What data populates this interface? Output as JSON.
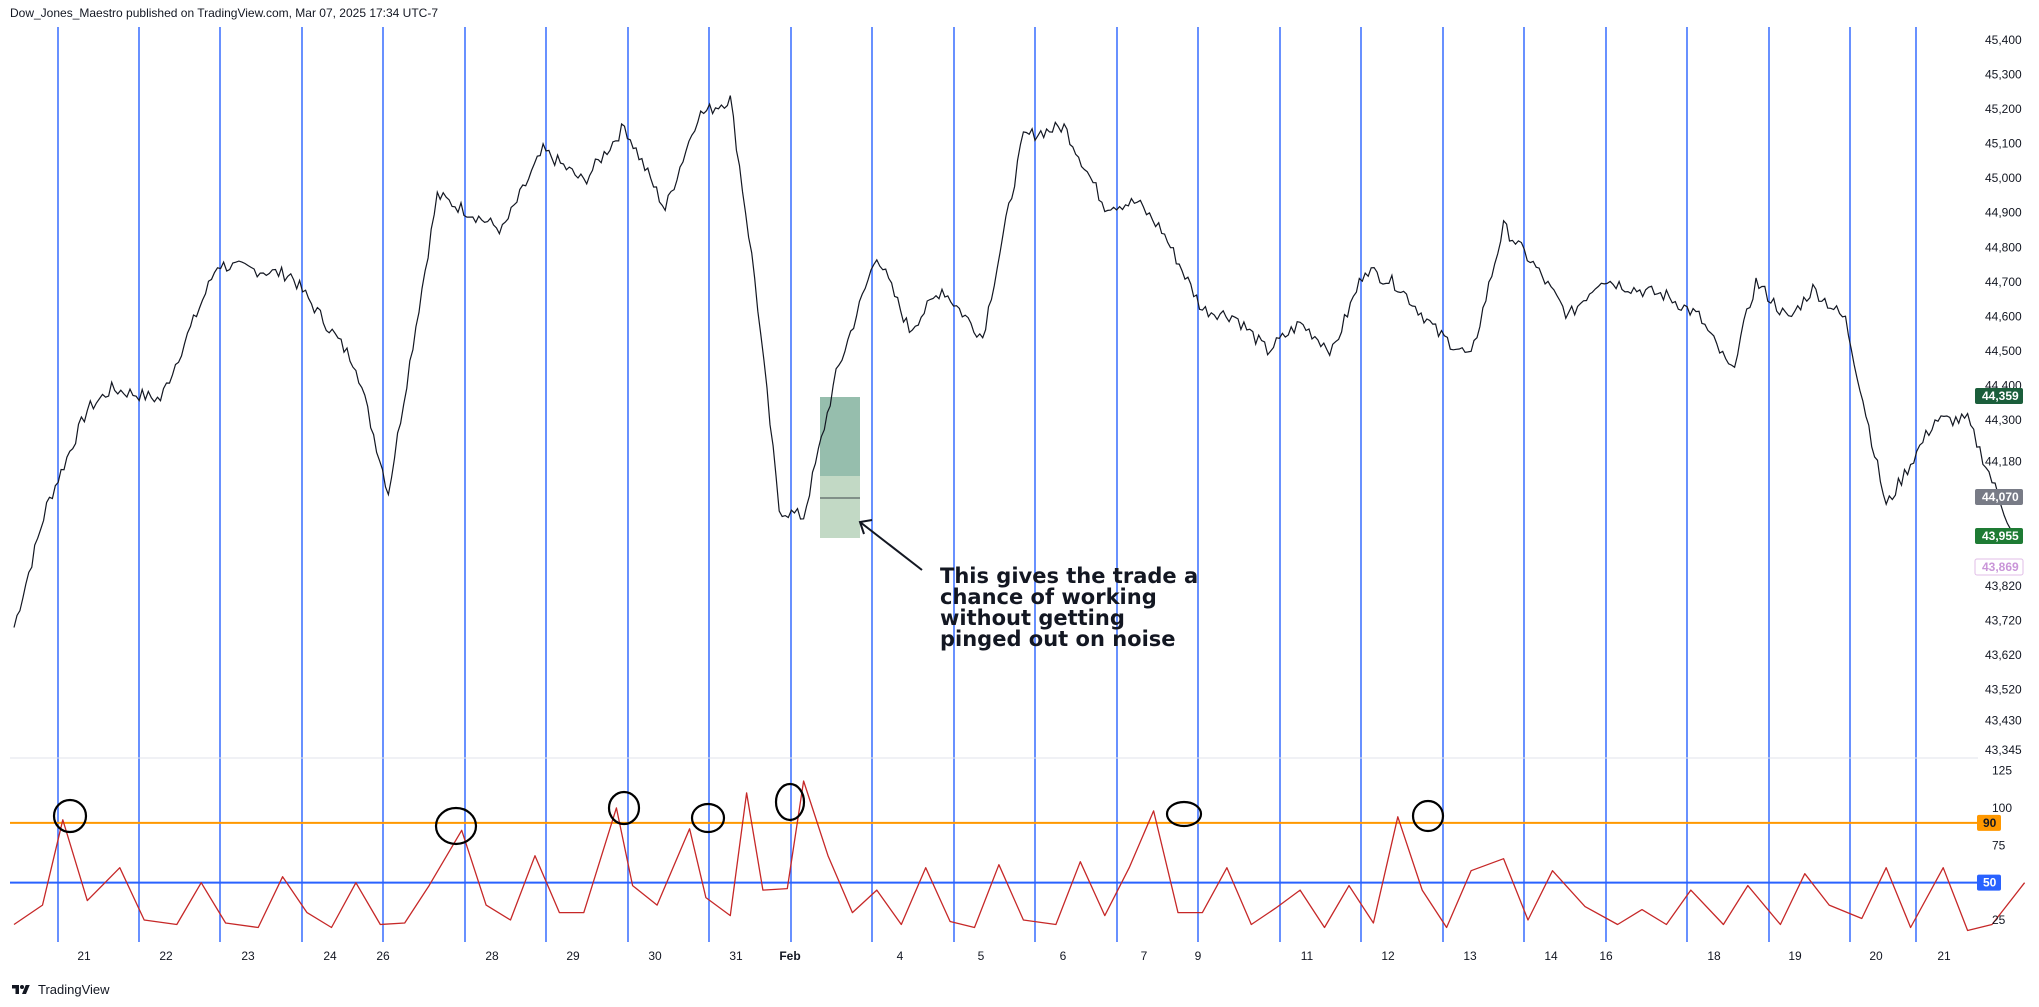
{
  "header": {
    "published_label": "Dow_Jones_Maestro published on TradingView.com, Mar 07, 2025 17:34 UTC-7"
  },
  "footer": {
    "brand": "TradingView",
    "logo_icon": "tradingview-logo-icon"
  },
  "annotation": {
    "lines": [
      "This gives the trade a",
      "chance of working",
      "without getting",
      "pinged out on noise"
    ],
    "arrow_icon": "arrow-pointer-icon"
  },
  "colors": {
    "price_line": "#131722",
    "vertical_lines": "#2962ff",
    "oscillator": "#c62828",
    "level_90": "#ff9800",
    "level_50": "#2962ff",
    "trade_box": "#2e7d5b",
    "badge_green": "#1b5e3b",
    "badge_grey": "#787b86",
    "badge_dark_green": "#1e7b34",
    "badge_pink": "#e1bee7"
  },
  "chart_data": [
    {
      "type": "line",
      "name": "price",
      "x_ticks": [
        "21",
        "22",
        "23",
        "24",
        "26",
        "28",
        "29",
        "30",
        "31",
        "Feb",
        "4",
        "5",
        "6",
        "7",
        "9",
        "11",
        "12",
        "13",
        "14",
        "16",
        "18",
        "19",
        "20",
        "21"
      ],
      "y_ticks": [
        "45,400",
        "45,300",
        "45,200",
        "45,100",
        "45,000",
        "44,900",
        "44,800",
        "44,700",
        "44,600",
        "44,500",
        "44,400",
        "44,300",
        "44,180",
        "43,820",
        "43,720",
        "43,620",
        "43,520",
        "43,430",
        "43,345"
      ],
      "ylim": [
        43345,
        45400
      ],
      "x": [
        0,
        0.4,
        0.9,
        1.2,
        1.8,
        2.5,
        3.4,
        4.2,
        4.6,
        5.2,
        6.0,
        6.5,
        7.0,
        7.5,
        8.0,
        8.4,
        8.8,
        9.1,
        9.4,
        9.7,
        10.1,
        10.6,
        11.0,
        11.4,
        11.9,
        12.4,
        12.9,
        13.4,
        13.8,
        14.1,
        14.6,
        15.0,
        15.4,
        15.8,
        16.2,
        16.6,
        17.0,
        17.5,
        17.9,
        18.3,
        18.7,
        19.1,
        19.5,
        19.9,
        20.3,
        20.7,
        21.1,
        21.4,
        21.8,
        22.1,
        22.5,
        23.0,
        23.6,
        24.0,
        24.6
      ],
      "y": [
        43700,
        44050,
        44330,
        44390,
        44360,
        44750,
        44720,
        44460,
        44090,
        44950,
        44850,
        45080,
        44990,
        45150,
        44910,
        45180,
        45230,
        44710,
        44040,
        44020,
        44430,
        44780,
        44560,
        44680,
        44540,
        45120,
        45150,
        44920,
        44930,
        44850,
        44620,
        44600,
        44500,
        44580,
        44500,
        44740,
        44690,
        44550,
        44480,
        44860,
        44740,
        44600,
        44710,
        44680,
        44660,
        44600,
        44440,
        44700,
        44590,
        44680,
        44590,
        44050,
        44300,
        44300,
        43950
      ]
    },
    {
      "type": "line",
      "name": "oscillator",
      "y_ticks": [
        "125",
        "100",
        "75",
        "50",
        "25"
      ],
      "ylim": [
        15,
        128
      ],
      "levels": [
        90,
        50
      ],
      "x": [
        0,
        0.35,
        0.6,
        0.9,
        1.3,
        1.6,
        2.0,
        2.3,
        2.6,
        3.0,
        3.3,
        3.6,
        3.9,
        4.2,
        4.5,
        4.8,
        5.1,
        5.5,
        5.8,
        6.1,
        6.4,
        6.7,
        7.0,
        7.4,
        7.6,
        7.9,
        8.3,
        8.5,
        8.8,
        9.0,
        9.2,
        9.5,
        9.7,
        10.0,
        10.3,
        10.6,
        10.9,
        11.2,
        11.5,
        11.8,
        12.1,
        12.4,
        12.8,
        13.1,
        13.4,
        13.7,
        14.0,
        14.3,
        14.6,
        14.9,
        15.2,
        15.5,
        15.8,
        16.1,
        16.4,
        16.7,
        17.0,
        17.3,
        17.6,
        17.9,
        18.3,
        18.6,
        18.9,
        19.3,
        19.7,
        20.0,
        20.3,
        20.6,
        21.0,
        21.3,
        21.7,
        22.0,
        22.3,
        22.7,
        23.0,
        23.3,
        23.7,
        24.0,
        24.3,
        24.7
      ],
      "y": [
        22,
        35,
        92,
        38,
        60,
        25,
        22,
        50,
        23,
        20,
        54,
        30,
        20,
        50,
        22,
        23,
        48,
        85,
        35,
        25,
        68,
        30,
        30,
        100,
        48,
        35,
        86,
        40,
        28,
        110,
        45,
        46,
        118,
        68,
        30,
        45,
        22,
        60,
        24,
        20,
        62,
        25,
        22,
        64,
        28,
        60,
        98,
        30,
        30,
        60,
        22,
        33,
        45,
        20,
        48,
        23,
        94,
        45,
        20,
        58,
        66,
        25,
        58,
        34,
        22,
        32,
        22,
        45,
        22,
        48,
        22,
        56,
        35,
        26,
        60,
        20,
        60,
        18,
        22,
        50
      ]
    }
  ],
  "price_badges": [
    {
      "value": "44,359",
      "color": "#1b5e3b",
      "text_color": "#ffffff"
    },
    {
      "value": "44,070",
      "color": "#787b86",
      "text_color": "#ffffff"
    },
    {
      "value": "43,955",
      "color": "#1e7b34",
      "text_color": "#ffffff"
    },
    {
      "value": "43,869",
      "color": "#ffffff",
      "text_color": "#c995d8"
    }
  ],
  "oscillator_badges": [
    {
      "value": "90",
      "color": "#ff9800",
      "text_color": "#131722"
    },
    {
      "value": "50",
      "color": "#2962ff",
      "text_color": "#ffffff"
    }
  ]
}
